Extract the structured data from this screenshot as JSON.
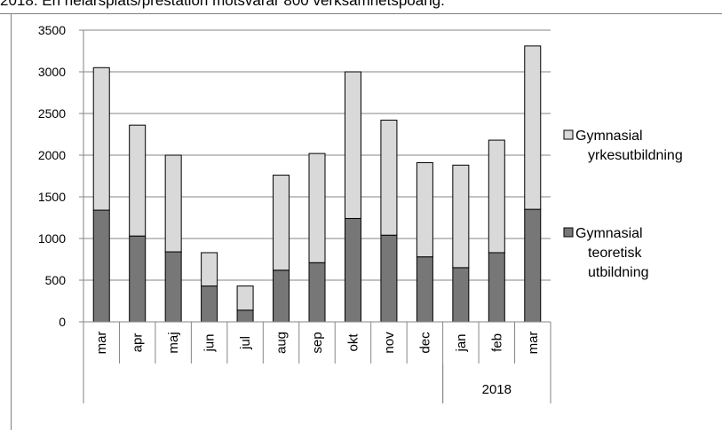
{
  "caption": "2018. En helårsplats/prestation motsvarar 800 verksamhetspoäng.",
  "chart_data": {
    "type": "bar",
    "stacked": true,
    "categories": [
      "mar",
      "apr",
      "maj",
      "jun",
      "jul",
      "aug",
      "sep",
      "okt",
      "nov",
      "dec",
      "jan",
      "feb",
      "mar"
    ],
    "group_labels": [
      {
        "label": "",
        "from": 0,
        "to": 9
      },
      {
        "label": "2018",
        "from": 10,
        "to": 12
      }
    ],
    "series": [
      {
        "name": "Gymnasial teoretisk utbildning",
        "legend_lines": [
          "Gymnasial",
          "teoretisk",
          "utbildning"
        ],
        "color": "#777777",
        "values": [
          1340,
          1030,
          840,
          430,
          140,
          620,
          710,
          1240,
          1040,
          780,
          650,
          830,
          1350
        ]
      },
      {
        "name": "Gymnasial yrkesutbildning",
        "legend_lines": [
          "Gymnasial",
          "yrkesutbildning"
        ],
        "color": "#d9d9d9",
        "values": [
          1710,
          1330,
          1160,
          400,
          290,
          1140,
          1310,
          1760,
          1380,
          1130,
          1230,
          1350,
          1960
        ]
      }
    ],
    "ylim": [
      0,
      3500
    ],
    "yticks": [
      0,
      500,
      1000,
      1500,
      2000,
      2500,
      3000,
      3500
    ],
    "grid": true,
    "legend": "right"
  }
}
